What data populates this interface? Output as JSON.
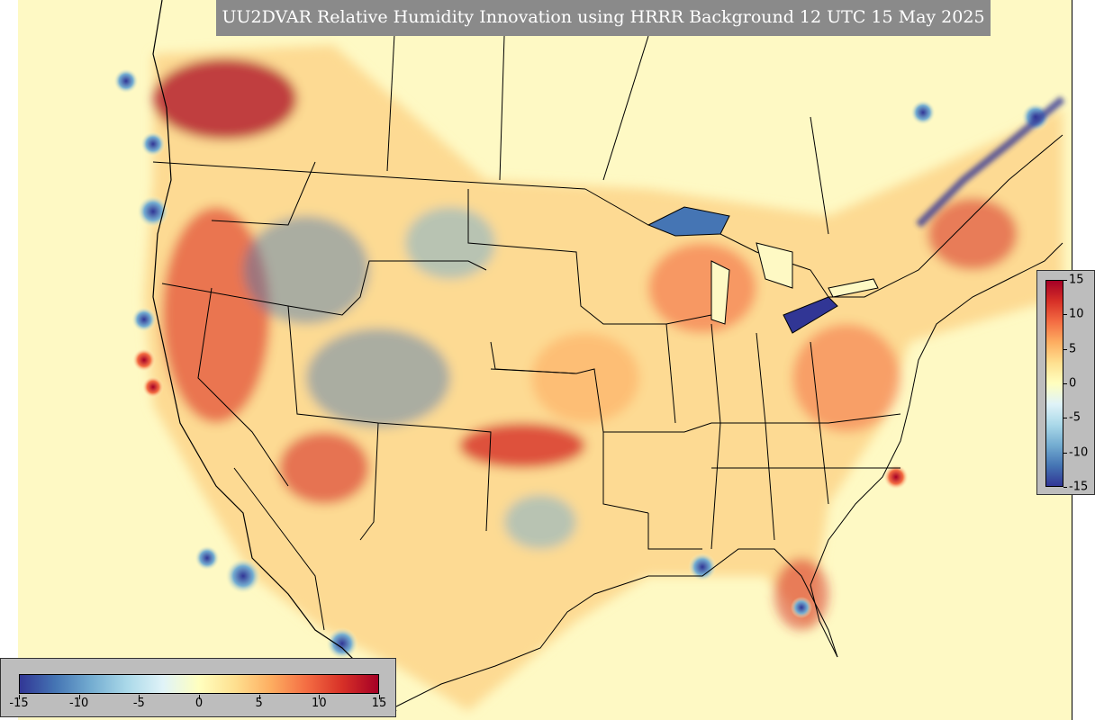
{
  "title": "UU2DVAR Relative Humidity Innovation using HRRR Background 12 UTC 15 May 2025",
  "colorbar": {
    "min": -15,
    "max": 15,
    "tick_labels": [
      "-15",
      "-10",
      "-5",
      "0",
      "5",
      "10",
      "15"
    ],
    "colors": [
      "#313695",
      "#4575b4",
      "#74add1",
      "#abd9e9",
      "#e0f3f8",
      "#ffffbf",
      "#fee090",
      "#fdae61",
      "#f46d43",
      "#d73027",
      "#a50026"
    ]
  },
  "map_colors": {
    "background": "#fef9c4",
    "positive": "#d73027",
    "negative": "#4575b4",
    "boundary": "#000000"
  }
}
